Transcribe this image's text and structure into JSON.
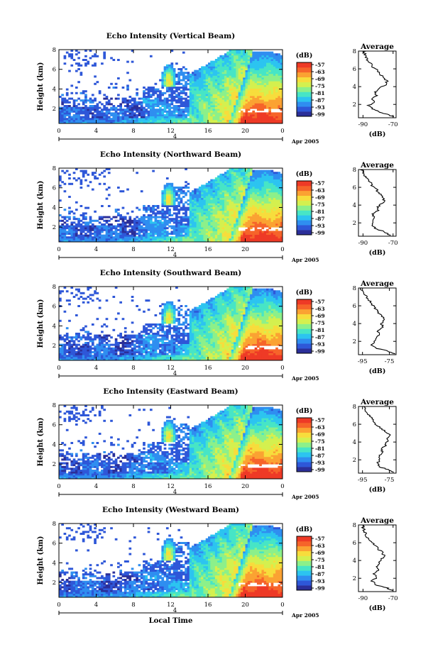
{
  "figure": {
    "xlabel": "Local Time",
    "date_label": "Apr 2005",
    "day_label": "4",
    "colorbar_unit": "(dB)",
    "colorbar_ticks": [
      "-57",
      "-63",
      "-69",
      "-75",
      "-81",
      "-87",
      "-93",
      "-99"
    ],
    "colors": [
      "#2b2f99",
      "#2e57d8",
      "#2f8ef0",
      "#2cc4f0",
      "#47e5c6",
      "#8cf08a",
      "#d4f04f",
      "#f7dd3c",
      "#fba232",
      "#f6642a",
      "#ee3a26"
    ]
  },
  "chart_data": [
    {
      "type": "heatmap",
      "title": "Echo Intensity (Vertical Beam)",
      "ylabel": "Height (km)",
      "x_ticks": [
        "0",
        "4",
        "8",
        "12",
        "16",
        "20",
        "0"
      ],
      "y_ticks": [
        "2",
        "4",
        "6",
        "8"
      ],
      "xlim": [
        0,
        24
      ],
      "ylim": [
        0.5,
        8
      ],
      "profile": {
        "title": "Average",
        "xlabel": "(dB)",
        "x_ticks": [
          "-90",
          "-70"
        ],
        "y_ticks": [
          "2",
          "4",
          "6",
          "8"
        ],
        "xlim": [
          -93,
          -68
        ],
        "ylim": [
          0.5,
          8
        ],
        "values": [
          [
            -70,
            0.6
          ],
          [
            -74,
            0.9
          ],
          [
            -80,
            1.2
          ],
          [
            -84,
            1.5
          ],
          [
            -86,
            1.9
          ],
          [
            -82,
            2.3
          ],
          [
            -85,
            2.6
          ],
          [
            -81,
            3.0
          ],
          [
            -82,
            3.4
          ],
          [
            -79,
            3.8
          ],
          [
            -75,
            4.2
          ],
          [
            -74,
            4.6
          ],
          [
            -76,
            5.0
          ],
          [
            -79,
            5.4
          ],
          [
            -80,
            5.8
          ],
          [
            -84,
            6.2
          ],
          [
            -85,
            6.6
          ],
          [
            -87,
            7.0
          ],
          [
            -88,
            7.4
          ],
          [
            -89,
            7.8
          ],
          [
            -90,
            8.0
          ]
        ]
      }
    },
    {
      "type": "heatmap",
      "title": "Echo Intensity (Northward Beam)",
      "ylabel": "Height (km)",
      "x_ticks": [
        "0",
        "4",
        "8",
        "12",
        "16",
        "20",
        "0"
      ],
      "y_ticks": [
        "2",
        "4",
        "6",
        "8"
      ],
      "xlim": [
        0,
        24
      ],
      "ylim": [
        0.5,
        8
      ],
      "profile": {
        "title": "Average",
        "xlabel": "(dB)",
        "x_ticks": [
          "-90",
          "-70"
        ],
        "y_ticks": [
          "2",
          "4",
          "6",
          "8"
        ],
        "xlim": [
          -93,
          -68
        ],
        "ylim": [
          0.5,
          8
        ],
        "values": [
          [
            -72,
            0.6
          ],
          [
            -76,
            1.0
          ],
          [
            -82,
            1.4
          ],
          [
            -84,
            1.8
          ],
          [
            -83,
            2.2
          ],
          [
            -82,
            2.6
          ],
          [
            -84,
            3.0
          ],
          [
            -80,
            3.4
          ],
          [
            -80,
            3.8
          ],
          [
            -77,
            4.2
          ],
          [
            -76,
            4.6
          ],
          [
            -77,
            5.0
          ],
          [
            -80,
            5.4
          ],
          [
            -81,
            5.8
          ],
          [
            -84,
            6.2
          ],
          [
            -85,
            6.6
          ],
          [
            -87,
            7.0
          ],
          [
            -89,
            7.4
          ],
          [
            -90,
            7.8
          ],
          [
            -91,
            8.0
          ]
        ]
      }
    },
    {
      "type": "heatmap",
      "title": "Echo Intensity (Southward Beam)",
      "ylabel": "Height (km)",
      "x_ticks": [
        "0",
        "4",
        "8",
        "12",
        "16",
        "20",
        "0"
      ],
      "y_ticks": [
        "2",
        "4",
        "6",
        "8"
      ],
      "xlim": [
        0,
        24
      ],
      "ylim": [
        0.5,
        8
      ],
      "profile": {
        "title": "Average",
        "xlabel": "(dB)",
        "x_ticks": [
          "-95",
          "-75"
        ],
        "y_ticks": [
          "2",
          "4",
          "6",
          "8"
        ],
        "xlim": [
          -98,
          -70
        ],
        "ylim": [
          0.5,
          8
        ],
        "values": [
          [
            -71,
            0.6
          ],
          [
            -76,
            0.9
          ],
          [
            -84,
            1.2
          ],
          [
            -88,
            1.6
          ],
          [
            -86,
            2.0
          ],
          [
            -85,
            2.4
          ],
          [
            -82,
            2.8
          ],
          [
            -84,
            3.2
          ],
          [
            -80,
            3.6
          ],
          [
            -81,
            4.0
          ],
          [
            -79,
            4.4
          ],
          [
            -80,
            4.8
          ],
          [
            -83,
            5.2
          ],
          [
            -85,
            5.6
          ],
          [
            -87,
            6.0
          ],
          [
            -89,
            6.4
          ],
          [
            -91,
            6.8
          ],
          [
            -93,
            7.2
          ],
          [
            -95,
            7.6
          ],
          [
            -96,
            8.0
          ]
        ]
      }
    },
    {
      "type": "heatmap",
      "title": "Echo Intensity (Eastward Beam)",
      "ylabel": "Height (km)",
      "x_ticks": [
        "0",
        "4",
        "8",
        "12",
        "16",
        "20",
        "0"
      ],
      "y_ticks": [
        "2",
        "4",
        "6",
        "8"
      ],
      "xlim": [
        0,
        24
      ],
      "ylim": [
        0.5,
        8
      ],
      "profile": {
        "title": "Average",
        "xlabel": "(dB)",
        "x_ticks": [
          "-95",
          "-75"
        ],
        "y_ticks": [
          "2",
          "4",
          "6",
          "8"
        ],
        "xlim": [
          -98,
          -70
        ],
        "ylim": [
          0.5,
          8
        ],
        "values": [
          [
            -72,
            0.6
          ],
          [
            -76,
            0.9
          ],
          [
            -82,
            1.2
          ],
          [
            -84,
            1.6
          ],
          [
            -82,
            2.0
          ],
          [
            -83,
            2.4
          ],
          [
            -80,
            2.8
          ],
          [
            -81,
            3.2
          ],
          [
            -78,
            3.6
          ],
          [
            -77,
            4.0
          ],
          [
            -76,
            4.4
          ],
          [
            -75,
            4.8
          ],
          [
            -78,
            5.2
          ],
          [
            -82,
            5.6
          ],
          [
            -85,
            6.0
          ],
          [
            -87,
            6.4
          ],
          [
            -89,
            6.8
          ],
          [
            -91,
            7.2
          ],
          [
            -93,
            7.6
          ],
          [
            -94,
            8.0
          ]
        ]
      }
    },
    {
      "type": "heatmap",
      "title": "Echo Intensity (Westward Beam)",
      "ylabel": "Height (km)",
      "x_ticks": [
        "0",
        "4",
        "8",
        "12",
        "16",
        "20",
        "0"
      ],
      "y_ticks": [
        "2",
        "4",
        "6",
        "8"
      ],
      "xlim": [
        0,
        24
      ],
      "ylim": [
        0.5,
        8
      ],
      "profile": {
        "title": "Average",
        "xlabel": "(dB)",
        "x_ticks": [
          "-90",
          "-70"
        ],
        "y_ticks": [
          "2",
          "4",
          "6",
          "8"
        ],
        "xlim": [
          -93,
          -68
        ],
        "ylim": [
          0.5,
          8
        ],
        "values": [
          [
            -70,
            0.6
          ],
          [
            -74,
            0.9
          ],
          [
            -82,
            1.3
          ],
          [
            -84,
            1.7
          ],
          [
            -81,
            2.1
          ],
          [
            -83,
            2.5
          ],
          [
            -80,
            2.9
          ],
          [
            -81,
            3.3
          ],
          [
            -79,
            3.7
          ],
          [
            -78,
            4.1
          ],
          [
            -76,
            4.5
          ],
          [
            -77,
            4.9
          ],
          [
            -80,
            5.3
          ],
          [
            -82,
            5.7
          ],
          [
            -85,
            6.1
          ],
          [
            -87,
            6.5
          ],
          [
            -88,
            6.9
          ],
          [
            -89,
            7.3
          ],
          [
            -90,
            7.7
          ],
          [
            -90,
            8.0
          ]
        ]
      }
    }
  ]
}
